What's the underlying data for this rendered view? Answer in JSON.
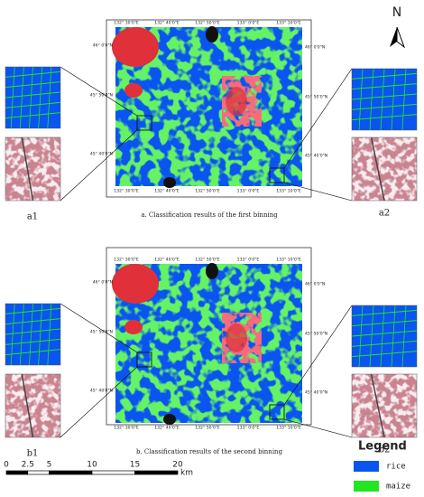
{
  "north": "N",
  "maps": [
    {
      "caption": "a.  Classification results of the first binning",
      "top_labels": [
        "132° 30'0\"E",
        "132° 40'0\"E",
        "132° 50'0\"E",
        "133° 0'0\"E",
        "133° 10'0\"E"
      ],
      "bottom_labels": [
        "132° 30'0\"E",
        "132° 40'0\"E",
        "132° 50'0\"E",
        "133° 0'0\"E",
        "133° 10'0\"E"
      ],
      "left_labels": [
        "46° 0'0\"N",
        "45° 50'0\"N",
        "45° 40'0\"N"
      ],
      "right_labels": [
        "46° 0'0\"N",
        "45° 50'0\"N",
        "45° 40'0\"N"
      ],
      "insets": [
        "a1",
        "a2"
      ]
    },
    {
      "caption": "b.  Classification results of the second binning",
      "top_labels": [
        "132° 30'0\"E",
        "132° 40'0\"E",
        "132° 50'0\"E",
        "133° 0'0\"E",
        "133° 10'0\"E"
      ],
      "bottom_labels": [
        "132° 30'0\"E",
        "132° 40'0\"E",
        "132° 50'0\"E",
        "133° 0'0\"E",
        "133° 10'0\"E"
      ],
      "left_labels": [
        "46° 0'0\"N",
        "45° 50'0\"N",
        "45° 40'0\"N"
      ],
      "right_labels": [
        "46° 0'0\"N",
        "45° 50'0\"N",
        "45° 40'0\"N"
      ],
      "insets": [
        "b1",
        "b2"
      ]
    }
  ],
  "scale_bar": {
    "ticks": [
      0,
      2.5,
      5,
      10,
      15,
      20
    ],
    "unit": "km"
  },
  "legend": {
    "title": "Legend",
    "items": [
      {
        "label": "rice",
        "color": "#0a55f0"
      },
      {
        "label": "maize",
        "color": "#22e622"
      }
    ]
  }
}
